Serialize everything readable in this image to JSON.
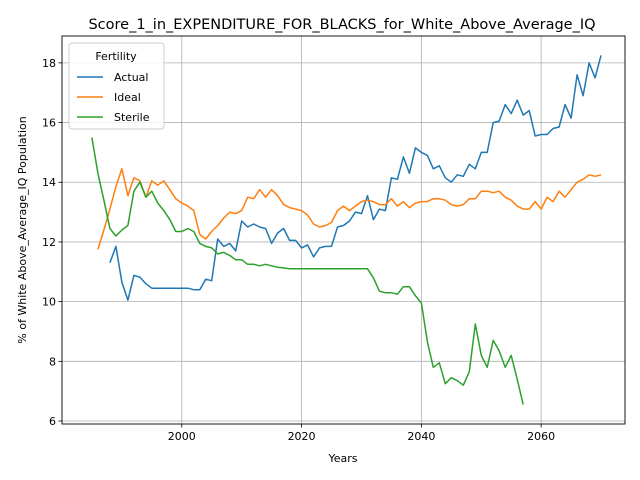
{
  "chart_data": {
    "type": "line",
    "title": "Score_1_in_EXPENDITURE_FOR_BLACKS_for_White_Above_Average_IQ",
    "xlabel": "Years",
    "ylabel": "% of White Above_Average_IQ Population",
    "xlim": [
      1980,
      2074
    ],
    "ylim": [
      5.9,
      18.9
    ],
    "x_ticks": [
      2000,
      2020,
      2040,
      2060
    ],
    "y_ticks": [
      6,
      8,
      10,
      12,
      14,
      16,
      18
    ],
    "grid": true,
    "legend": {
      "title": "Fertility",
      "placement": "top-left"
    },
    "series": [
      {
        "name": "Actual",
        "color": "#1f77b4",
        "x": [
          1988,
          1989,
          1990,
          1991,
          1992,
          1993,
          1994,
          1995,
          1996,
          1997,
          1998,
          1999,
          2000,
          2001,
          2002,
          2003,
          2004,
          2005,
          2006,
          2007,
          2008,
          2009,
          2010,
          2011,
          2012,
          2013,
          2014,
          2015,
          2016,
          2017,
          2018,
          2019,
          2020,
          2021,
          2022,
          2023,
          2024,
          2025,
          2026,
          2027,
          2028,
          2029,
          2030,
          2031,
          2032,
          2033,
          2034,
          2035,
          2036,
          2037,
          2038,
          2039,
          2040,
          2041,
          2042,
          2043,
          2044,
          2045,
          2046,
          2047,
          2048,
          2049,
          2050,
          2051,
          2052,
          2053,
          2054,
          2055,
          2056,
          2057,
          2058,
          2059,
          2060,
          2061,
          2062,
          2063,
          2064,
          2065,
          2066,
          2067,
          2068,
          2069,
          2070
        ],
        "values": [
          11.3,
          11.85,
          10.65,
          10.05,
          10.88,
          10.82,
          10.6,
          10.45,
          10.45,
          10.45,
          10.45,
          10.45,
          10.45,
          10.45,
          10.4,
          10.4,
          10.75,
          10.7,
          12.1,
          11.85,
          11.95,
          11.7,
          12.7,
          12.5,
          12.6,
          12.5,
          12.45,
          11.95,
          12.3,
          12.45,
          12.05,
          12.05,
          11.8,
          11.9,
          11.5,
          11.8,
          11.85,
          11.85,
          12.5,
          12.55,
          12.7,
          13.0,
          12.95,
          13.55,
          12.75,
          13.1,
          13.05,
          14.15,
          14.1,
          14.85,
          14.3,
          15.15,
          15.0,
          14.9,
          14.45,
          14.55,
          14.15,
          14.0,
          14.25,
          14.2,
          14.6,
          14.45,
          15.0,
          15.0,
          16.0,
          16.05,
          16.6,
          16.3,
          16.75,
          16.25,
          16.4,
          15.55,
          15.6,
          15.6,
          15.8,
          15.85,
          16.6,
          16.15,
          17.6,
          16.9,
          18.0,
          17.5,
          18.25
        ]
      },
      {
        "name": "Ideal",
        "color": "#ff7f0e",
        "x": [
          1986,
          1987,
          1988,
          1989,
          1990,
          1991,
          1992,
          1993,
          1994,
          1995,
          1996,
          1997,
          1998,
          1999,
          2000,
          2001,
          2002,
          2003,
          2004,
          2005,
          2006,
          2007,
          2008,
          2009,
          2010,
          2011,
          2012,
          2013,
          2014,
          2015,
          2016,
          2017,
          2018,
          2019,
          2020,
          2021,
          2022,
          2023,
          2024,
          2025,
          2026,
          2027,
          2028,
          2029,
          2030,
          2031,
          2032,
          2033,
          2034,
          2035,
          2036,
          2037,
          2038,
          2039,
          2040,
          2041,
          2042,
          2043,
          2044,
          2045,
          2046,
          2047,
          2048,
          2049,
          2050,
          2051,
          2052,
          2053,
          2054,
          2055,
          2056,
          2057,
          2058,
          2059,
          2060,
          2061,
          2062,
          2063,
          2064,
          2065,
          2066,
          2067,
          2068,
          2069,
          2070
        ],
        "values": [
          11.75,
          12.4,
          13.1,
          13.85,
          14.45,
          13.55,
          14.15,
          14.05,
          13.5,
          14.05,
          13.9,
          14.05,
          13.75,
          13.45,
          13.3,
          13.2,
          13.05,
          12.25,
          12.1,
          12.35,
          12.55,
          12.8,
          13.0,
          12.95,
          13.05,
          13.5,
          13.45,
          13.75,
          13.5,
          13.75,
          13.55,
          13.25,
          13.15,
          13.1,
          13.05,
          12.9,
          12.6,
          12.5,
          12.55,
          12.65,
          13.05,
          13.2,
          13.05,
          13.2,
          13.35,
          13.4,
          13.35,
          13.25,
          13.25,
          13.45,
          13.2,
          13.35,
          13.15,
          13.3,
          13.35,
          13.35,
          13.45,
          13.45,
          13.4,
          13.25,
          13.2,
          13.25,
          13.45,
          13.45,
          13.7,
          13.7,
          13.65,
          13.7,
          13.5,
          13.4,
          13.2,
          13.1,
          13.1,
          13.35,
          13.1,
          13.5,
          13.35,
          13.7,
          13.5,
          13.75,
          14.0,
          14.1,
          14.25,
          14.2,
          14.25
        ]
      },
      {
        "name": "Sterile",
        "color": "#2ca02c",
        "x": [
          1985,
          1986,
          1987,
          1988,
          1989,
          1990,
          1991,
          1992,
          1993,
          1994,
          1995,
          1996,
          1997,
          1998,
          1999,
          2000,
          2001,
          2002,
          2003,
          2004,
          2005,
          2006,
          2007,
          2008,
          2009,
          2010,
          2011,
          2012,
          2013,
          2014,
          2015,
          2016,
          2017,
          2018,
          2019,
          2020,
          2021,
          2022,
          2023,
          2024,
          2025,
          2026,
          2027,
          2028,
          2029,
          2030,
          2031,
          2032,
          2033,
          2034,
          2035,
          2036,
          2037,
          2038,
          2039,
          2040,
          2041,
          2042,
          2043,
          2044,
          2045,
          2046,
          2047,
          2048,
          2049,
          2050,
          2051,
          2052,
          2053,
          2054,
          2055,
          2056,
          2057
        ],
        "values": [
          15.5,
          14.3,
          13.4,
          12.45,
          12.2,
          12.4,
          12.55,
          13.7,
          14.0,
          13.5,
          13.7,
          13.3,
          13.05,
          12.75,
          12.35,
          12.35,
          12.45,
          12.35,
          11.95,
          11.85,
          11.8,
          11.6,
          11.65,
          11.55,
          11.4,
          11.4,
          11.25,
          11.25,
          11.2,
          11.25,
          11.2,
          11.15,
          11.13,
          11.1,
          11.1,
          11.1,
          11.1,
          11.1,
          11.1,
          11.1,
          11.1,
          11.1,
          11.1,
          11.1,
          11.1,
          11.1,
          11.1,
          10.8,
          10.35,
          10.3,
          10.3,
          10.25,
          10.5,
          10.5,
          10.2,
          9.95,
          8.65,
          7.8,
          7.95,
          7.25,
          7.45,
          7.35,
          7.2,
          7.65,
          9.25,
          8.2,
          7.8,
          8.7,
          8.35,
          7.8,
          8.2,
          7.4,
          6.55
        ]
      }
    ]
  }
}
